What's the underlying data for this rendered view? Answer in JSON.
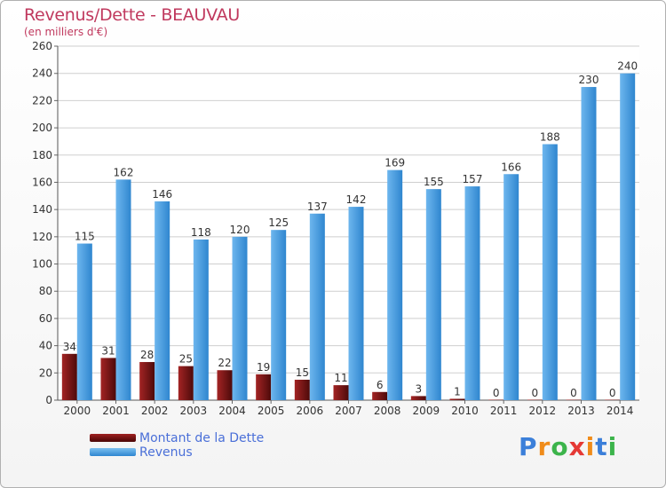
{
  "title": "Revenus/Dette - BEAUVAU",
  "subtitle": "(en milliers d'€)",
  "logo": {
    "letters": [
      "P",
      "r",
      "o",
      "x",
      "i",
      "t",
      "i"
    ],
    "colors": [
      "#3b7fd9",
      "#f08c1a",
      "#3cb44b",
      "#e53935",
      "#f08c1a",
      "#3b7fd9",
      "#3cb44b"
    ]
  },
  "chart_data": {
    "type": "bar",
    "title": "Revenus/Dette - BEAUVAU",
    "subtitle": "(en milliers d'€)",
    "xlabel": "",
    "ylabel": "",
    "ylim": [
      0,
      260
    ],
    "yticks": [
      0,
      20,
      40,
      60,
      80,
      100,
      120,
      140,
      160,
      180,
      200,
      220,
      240,
      260
    ],
    "grid": true,
    "legend_position": "bottom-left",
    "categories": [
      "2000",
      "2001",
      "2002",
      "2003",
      "2004",
      "2005",
      "2006",
      "2007",
      "2008",
      "2009",
      "2010",
      "2011",
      "2012",
      "2013",
      "2014"
    ],
    "series": [
      {
        "name": "Montant de la Dette",
        "color": "#7a1414",
        "values": [
          34,
          31,
          28,
          25,
          22,
          19,
          15,
          11,
          6,
          3,
          1,
          0,
          0,
          0,
          0
        ]
      },
      {
        "name": "Revenus",
        "color": "#4a9fe0",
        "values": [
          115,
          162,
          146,
          118,
          120,
          125,
          137,
          142,
          169,
          155,
          157,
          166,
          188,
          230,
          240
        ]
      }
    ]
  }
}
